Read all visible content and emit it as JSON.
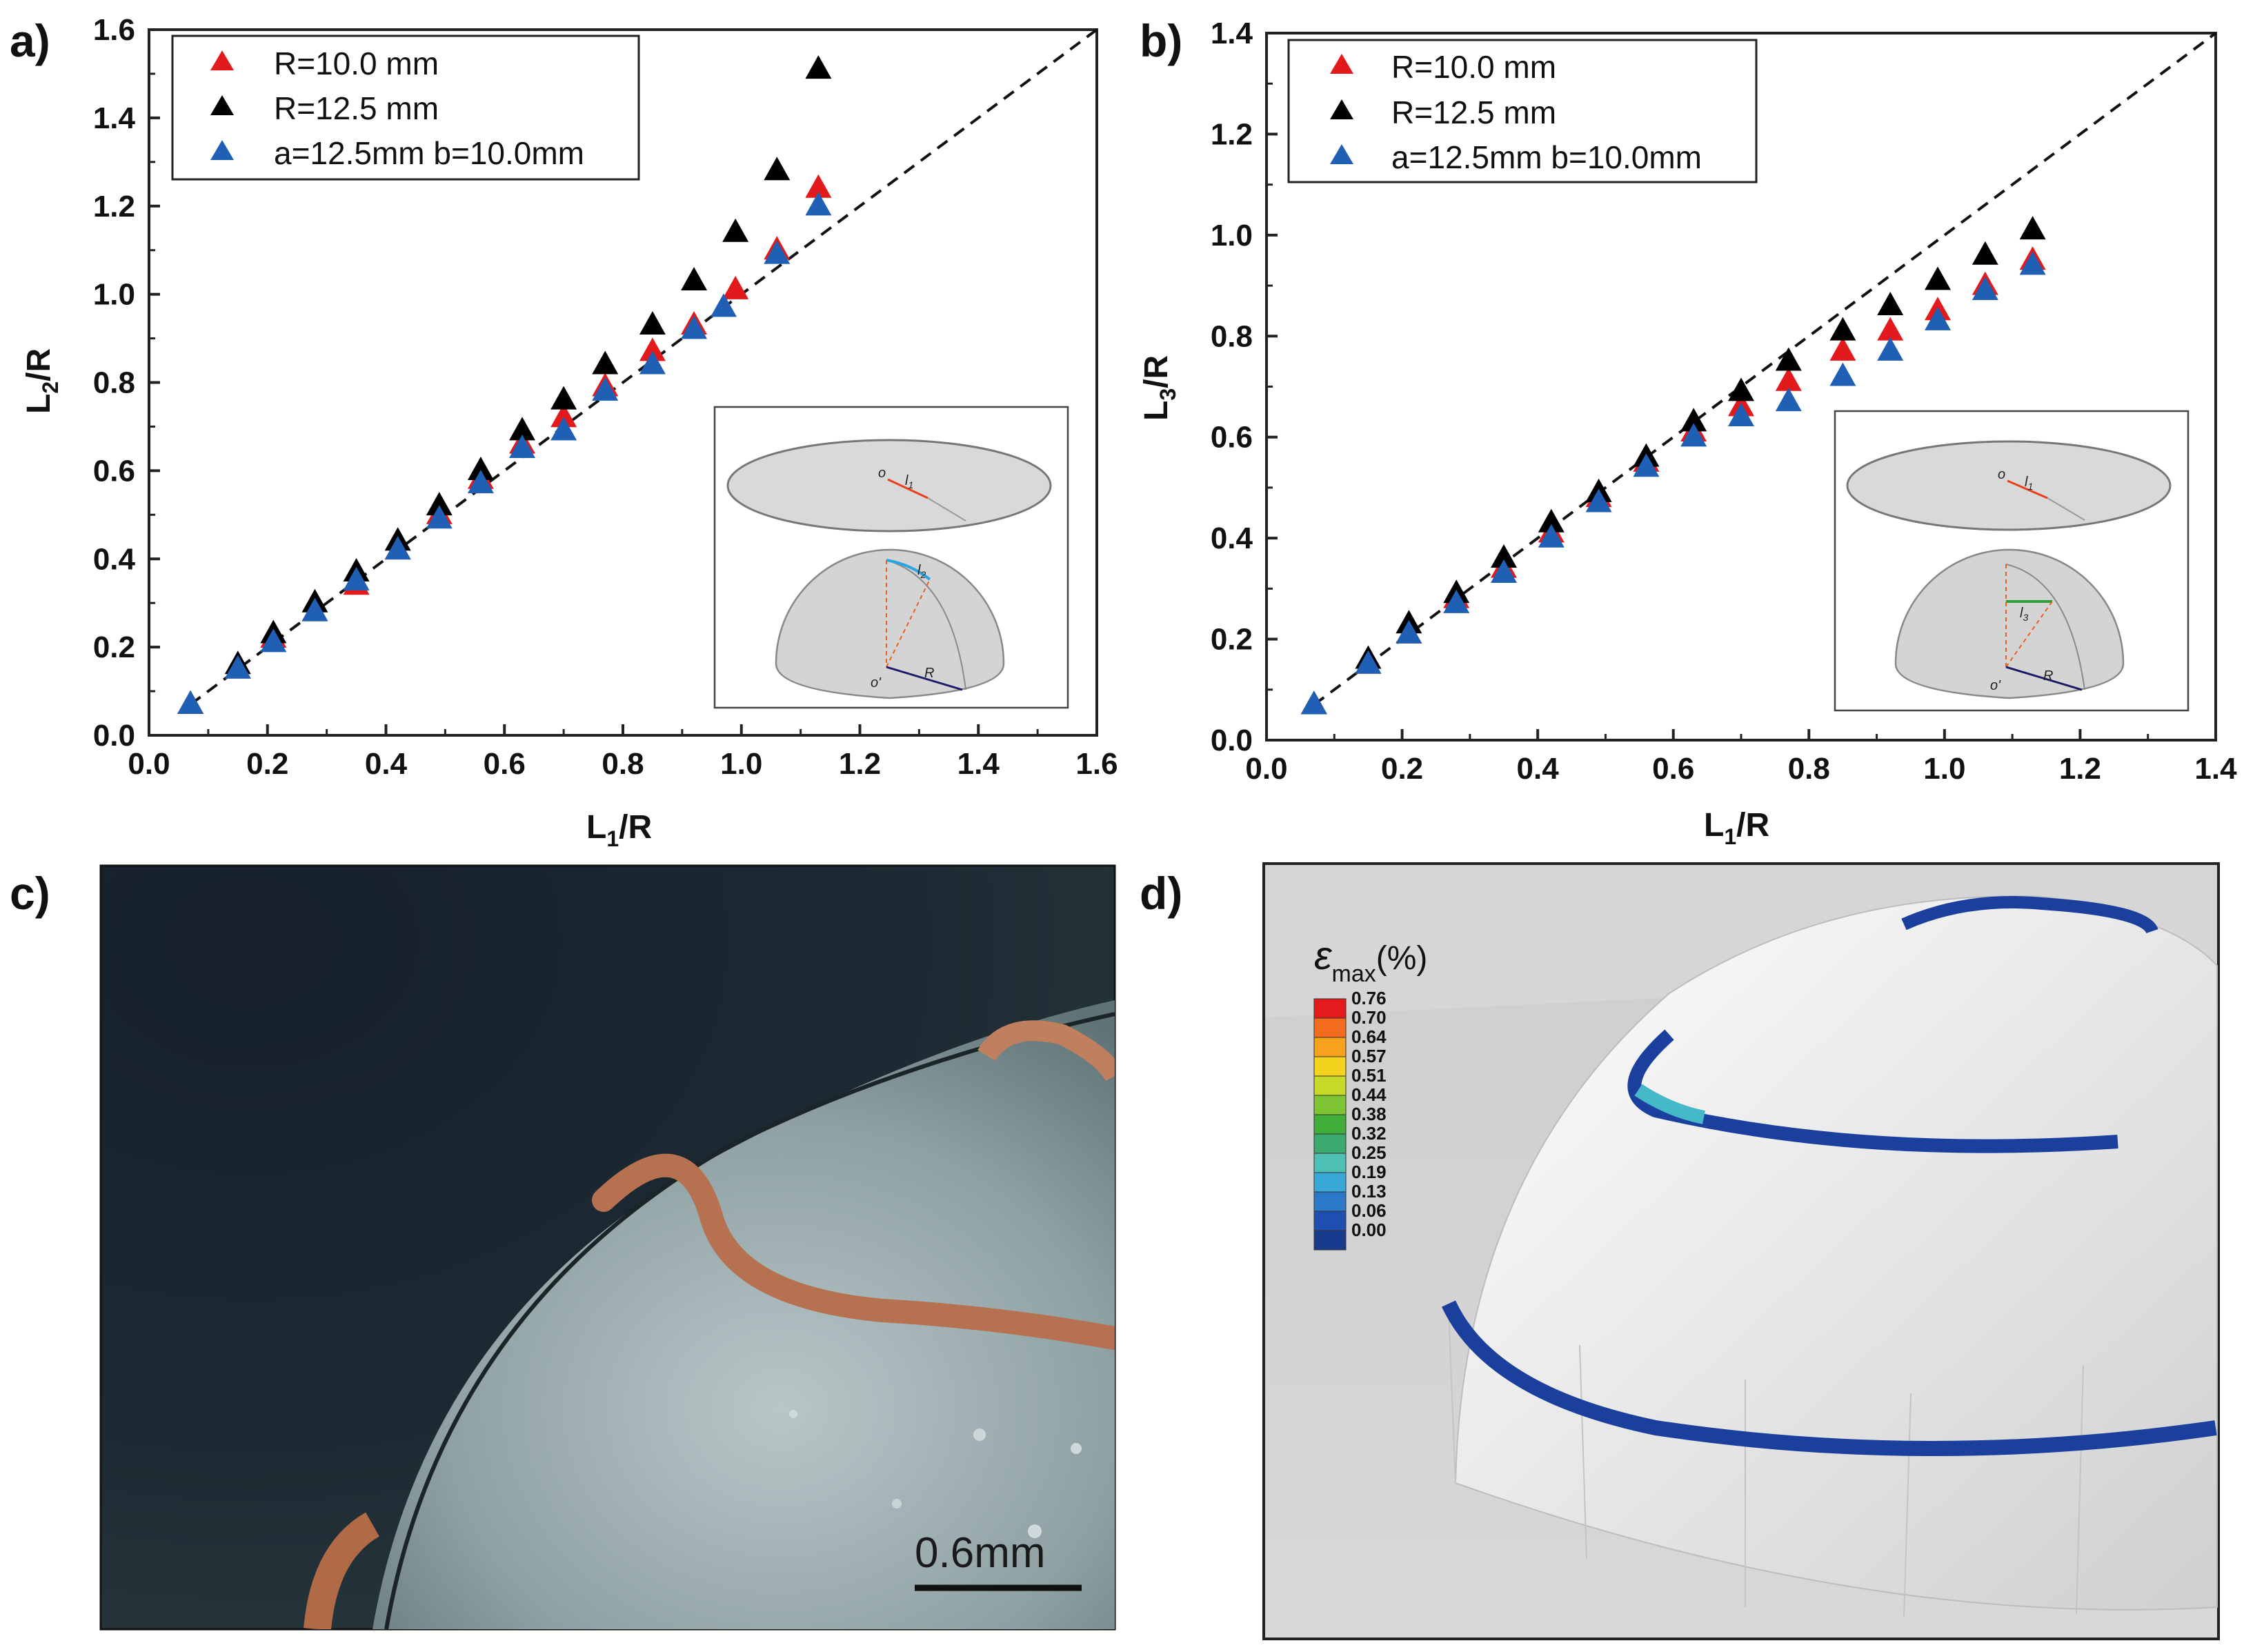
{
  "panels": {
    "a": "a)",
    "b": "b)",
    "c": "c)",
    "d": "d)"
  },
  "chart_data": [
    {
      "id": "a",
      "type": "scatter",
      "xlabel": "L",
      "xlabel_sub": "1",
      "xlabel_tail": "/R",
      "ylabel": "L",
      "ylabel_sub": "2",
      "ylabel_tail": "/R",
      "xlim": [
        0.0,
        1.6
      ],
      "ylim": [
        0.0,
        1.6
      ],
      "xticks": [
        "0.0",
        "0.2",
        "0.4",
        "0.6",
        "0.8",
        "1.0",
        "1.2",
        "1.4",
        "1.6"
      ],
      "yticks": [
        "0.0",
        "0.2",
        "0.4",
        "0.6",
        "0.8",
        "1.0",
        "1.2",
        "1.4",
        "1.6"
      ],
      "reference_line": "y = x (dashed)",
      "legend": "top-left",
      "series": [
        {
          "name": "R=10.0 mm",
          "color": "#e31a1c",
          "x": [
            0.07,
            0.15,
            0.21,
            0.28,
            0.35,
            0.42,
            0.49,
            0.56,
            0.63,
            0.7,
            0.77,
            0.85,
            0.92,
            0.99,
            1.06,
            1.13
          ],
          "y": [
            0.07,
            0.15,
            0.22,
            0.28,
            0.34,
            0.42,
            0.5,
            0.58,
            0.66,
            0.72,
            0.79,
            0.87,
            0.93,
            1.01,
            1.1,
            1.24
          ]
        },
        {
          "name": "R=12.5 mm",
          "color": "#000000",
          "x": [
            0.07,
            0.15,
            0.21,
            0.28,
            0.35,
            0.42,
            0.49,
            0.56,
            0.63,
            0.7,
            0.77,
            0.85,
            0.92,
            0.99,
            1.06,
            1.13
          ],
          "y": [
            0.07,
            0.16,
            0.23,
            0.3,
            0.37,
            0.44,
            0.52,
            0.6,
            0.69,
            0.76,
            0.84,
            0.93,
            1.03,
            1.14,
            1.28,
            1.51
          ]
        },
        {
          "name": "a=12.5mm b=10.0mm",
          "color": "#1f5fb4",
          "x": [
            0.07,
            0.15,
            0.21,
            0.28,
            0.35,
            0.42,
            0.49,
            0.56,
            0.63,
            0.7,
            0.77,
            0.85,
            0.92,
            0.97,
            1.06,
            1.13
          ],
          "y": [
            0.07,
            0.15,
            0.21,
            0.28,
            0.35,
            0.42,
            0.49,
            0.57,
            0.65,
            0.69,
            0.78,
            0.84,
            0.92,
            0.97,
            1.09,
            1.2
          ]
        }
      ],
      "inset_labels": {
        "o": "o",
        "l": "l",
        "l_sub_top": "1",
        "l_sub_bottom": "2",
        "o_prime": "o'",
        "R": "R"
      }
    },
    {
      "id": "b",
      "type": "scatter",
      "xlabel": "L",
      "xlabel_sub": "1",
      "xlabel_tail": "/R",
      "ylabel": "L",
      "ylabel_sub": "3",
      "ylabel_tail": "/R",
      "xlim": [
        0.0,
        1.4
      ],
      "ylim": [
        0.0,
        1.4
      ],
      "xticks": [
        "0.0",
        "0.2",
        "0.4",
        "0.6",
        "0.8",
        "1.0",
        "1.2",
        "1.4"
      ],
      "yticks": [
        "0.0",
        "0.2",
        "0.4",
        "0.6",
        "0.8",
        "1.0",
        "1.2",
        "1.4"
      ],
      "reference_line": "y = x (dashed)",
      "legend": "top-left",
      "series": [
        {
          "name": "R=10.0 mm",
          "color": "#e31a1c",
          "x": [
            0.07,
            0.15,
            0.21,
            0.28,
            0.35,
            0.42,
            0.49,
            0.56,
            0.63,
            0.7,
            0.77,
            0.85,
            0.92,
            0.99,
            1.06,
            1.13
          ],
          "y": [
            0.07,
            0.15,
            0.21,
            0.28,
            0.34,
            0.41,
            0.48,
            0.55,
            0.61,
            0.66,
            0.71,
            0.77,
            0.81,
            0.85,
            0.9,
            0.95
          ]
        },
        {
          "name": "R=12.5 mm",
          "color": "#000000",
          "x": [
            0.07,
            0.15,
            0.21,
            0.28,
            0.35,
            0.42,
            0.49,
            0.56,
            0.63,
            0.7,
            0.77,
            0.85,
            0.92,
            0.99,
            1.06,
            1.13
          ],
          "y": [
            0.07,
            0.16,
            0.23,
            0.29,
            0.36,
            0.43,
            0.49,
            0.56,
            0.63,
            0.69,
            0.75,
            0.81,
            0.86,
            0.91,
            0.96,
            1.01
          ]
        },
        {
          "name": "a=12.5mm b=10.0mm",
          "color": "#1f5fb4",
          "x": [
            0.07,
            0.15,
            0.21,
            0.28,
            0.35,
            0.42,
            0.49,
            0.56,
            0.63,
            0.7,
            0.77,
            0.85,
            0.92,
            0.99,
            1.06,
            1.13
          ],
          "y": [
            0.07,
            0.15,
            0.21,
            0.27,
            0.33,
            0.4,
            0.47,
            0.54,
            0.6,
            0.64,
            0.67,
            0.72,
            0.77,
            0.83,
            0.89,
            0.94
          ]
        }
      ],
      "inset_labels": {
        "o": "o",
        "l": "l",
        "l_sub_top": "1",
        "l_sub_bottom": "3",
        "o_prime": "o'",
        "R": "R"
      }
    }
  ],
  "photo": {
    "scale_bar_label": "0.6mm"
  },
  "fem": {
    "colorbar_title_symbol": "ε",
    "colorbar_title_sub": "max",
    "colorbar_title_unit": "(%)",
    "colorbar_labels": [
      "0.76",
      "0.70",
      "0.64",
      "0.57",
      "0.51",
      "0.44",
      "0.38",
      "0.32",
      "0.25",
      "0.19",
      "0.13",
      "0.06",
      "0.00"
    ],
    "colorbar_colors": [
      "#e41a1c",
      "#f36b1c",
      "#f6a21c",
      "#f4d31c",
      "#c8d826",
      "#7fc434",
      "#3fae3a",
      "#3ca96e",
      "#4ebfb3",
      "#39a7d8",
      "#2a78c8",
      "#1f4fb0",
      "#183a8c"
    ]
  }
}
